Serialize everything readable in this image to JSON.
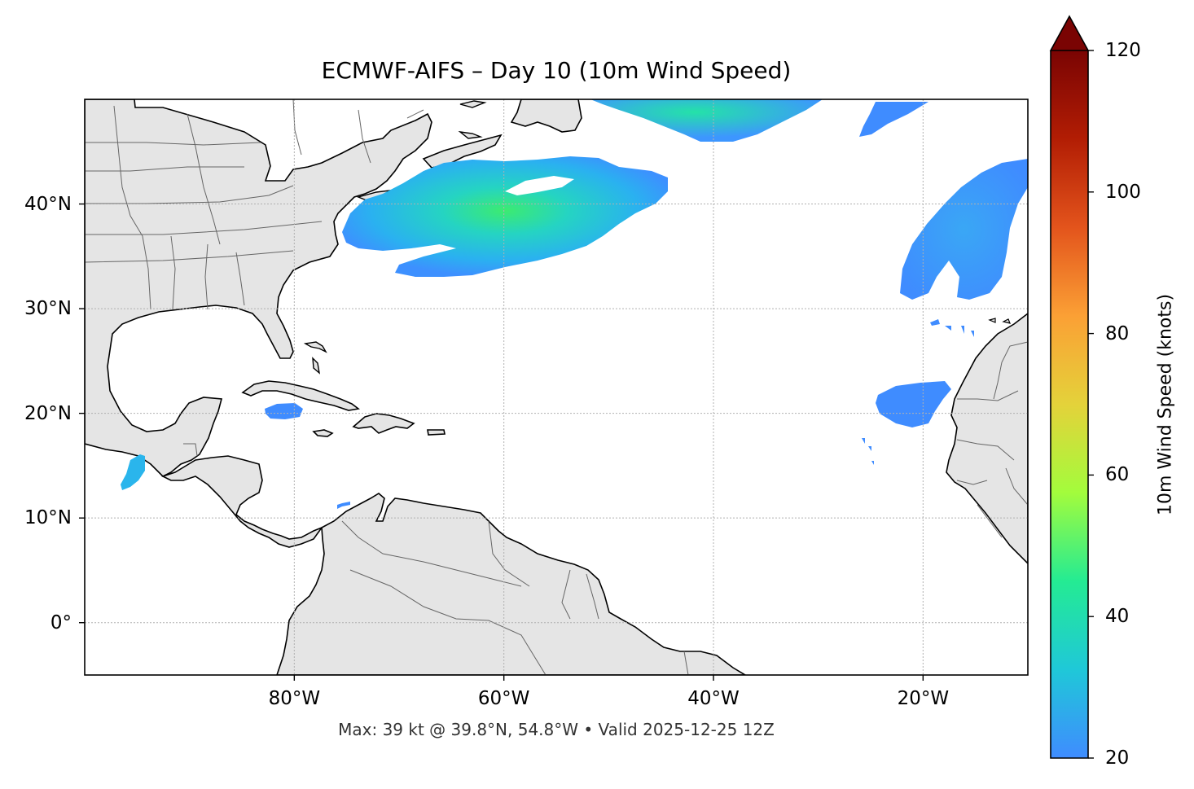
{
  "title": "ECMWF-AIFS – Day 10 (10m Wind Speed)",
  "footer": "Max: 39 kt @ 39.8°N, 54.8°W • Valid 2025-12-25 12Z",
  "map": {
    "extent_lon": [
      -100,
      -10
    ],
    "extent_lat": [
      -5,
      50
    ],
    "x_ticks": [
      {
        "lon": -80,
        "label": "80°W"
      },
      {
        "lon": -60,
        "label": "60°W"
      },
      {
        "lon": -40,
        "label": "40°W"
      },
      {
        "lon": -20,
        "label": "20°W"
      }
    ],
    "y_ticks": [
      {
        "lat": 40,
        "label": "40°N"
      },
      {
        "lat": 30,
        "label": "30°N"
      },
      {
        "lat": 20,
        "label": "20°N"
      },
      {
        "lat": 10,
        "label": "10°N"
      },
      {
        "lat": 0,
        "label": "0°"
      }
    ],
    "land_color": "#e5e5e5",
    "ocean_color": "#ffffff",
    "gridlines": true
  },
  "colorbar": {
    "label": "10m Wind Speed (knots)",
    "range": [
      20,
      120
    ],
    "extend": "max",
    "ticks": [
      {
        "value": 20,
        "label": "20"
      },
      {
        "value": 40,
        "label": "40"
      },
      {
        "value": 60,
        "label": "60"
      },
      {
        "value": 80,
        "label": "80"
      },
      {
        "value": 100,
        "label": "100"
      },
      {
        "value": 120,
        "label": "120"
      }
    ],
    "colors": [
      "#3f8cff",
      "#1fc8d8",
      "#24eb93",
      "#a3fc3c",
      "#e4d23a",
      "#fba035",
      "#e3541c",
      "#b21d04",
      "#7a0403"
    ]
  },
  "wind_areas": [
    {
      "name": "north-atlantic-jet",
      "peak_kt": 39,
      "peak_lat": 39.8,
      "peak_lon": -54.8
    },
    {
      "name": "northeast-atlantic-band",
      "peak_kt": 27
    },
    {
      "name": "north-central-band",
      "peak_kt": 30
    },
    {
      "name": "northeast-corner",
      "peak_kt": 22
    },
    {
      "name": "canary-region",
      "peak_kt": 21
    },
    {
      "name": "cayman-area",
      "peak_kt": 21
    },
    {
      "name": "gulf-of-tehuantepec",
      "peak_kt": 27
    }
  ]
}
